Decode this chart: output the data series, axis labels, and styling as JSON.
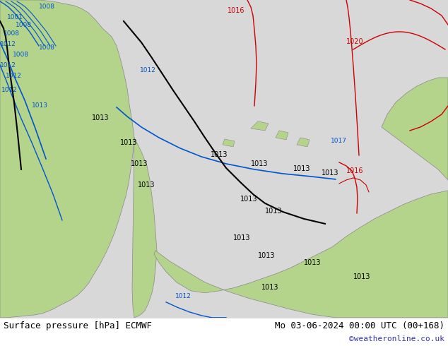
{
  "title_left": "Surface pressure [hPa] ECMWF",
  "title_right": "Mo 03-06-2024 00:00 UTC (00+168)",
  "watermark": "©weatheronline.co.uk",
  "ocean_color": "#d8d8d8",
  "land_color": "#b4d48c",
  "bottom_bar_color": "#ffffff",
  "black_line_color": "#000000",
  "blue_line_color": "#0055cc",
  "red_line_color": "#cc0000",
  "label_color_black": "#000000",
  "label_color_blue": "#0055cc",
  "label_color_red": "#cc0000",
  "watermark_color": "#3333bb"
}
